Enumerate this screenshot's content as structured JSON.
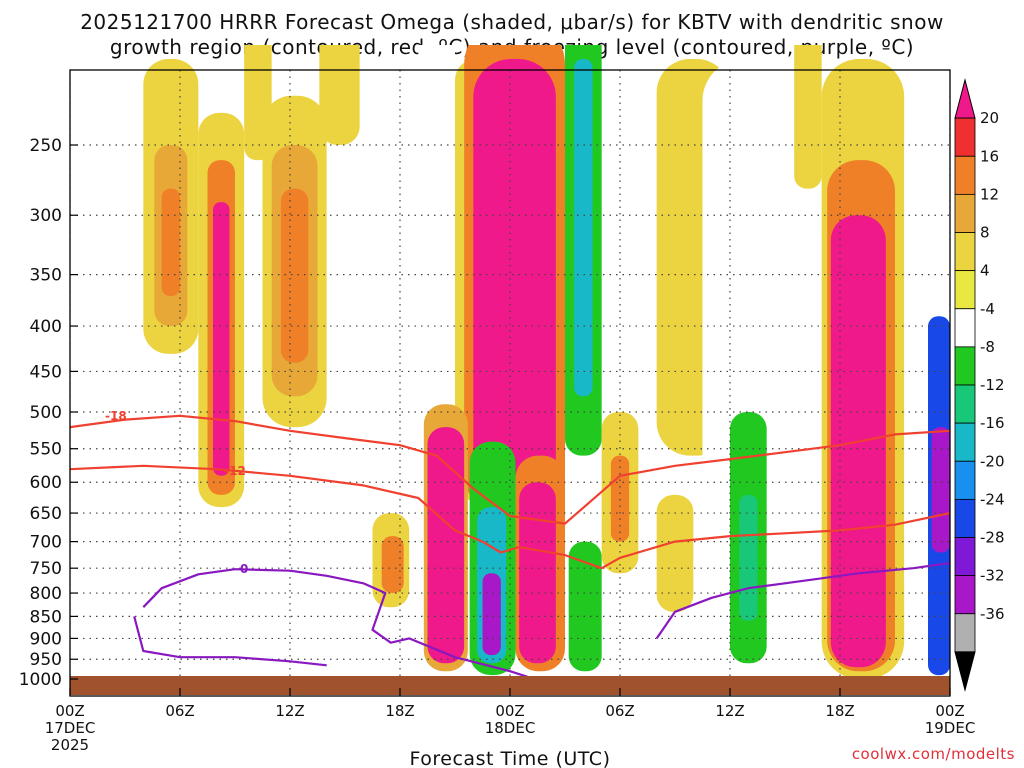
{
  "chart_data": {
    "type": "heatmap",
    "title_line1": "2025121700 HRRR Forecast Omega (shaded, μbar/s) for KBTV with dendritic snow",
    "title_line2": "growth region (contoured, red, ºC) and freezing level (contoured, purple, ºC)",
    "xlabel": "Forecast Time (UTC)",
    "ylabel": "",
    "credit": "coolwx.com/modelts",
    "x_range_hours": [
      0,
      48
    ],
    "x_ticks": [
      {
        "h": 0,
        "l1": "00Z",
        "l2": "17DEC",
        "l3": "2025"
      },
      {
        "h": 6,
        "l1": "06Z",
        "l2": "",
        "l3": ""
      },
      {
        "h": 12,
        "l1": "12Z",
        "l2": "",
        "l3": ""
      },
      {
        "h": 18,
        "l1": "18Z",
        "l2": "",
        "l3": ""
      },
      {
        "h": 24,
        "l1": "00Z",
        "l2": "18DEC",
        "l3": ""
      },
      {
        "h": 30,
        "l1": "06Z",
        "l2": "",
        "l3": ""
      },
      {
        "h": 36,
        "l1": "12Z",
        "l2": "",
        "l3": ""
      },
      {
        "h": 42,
        "l1": "18Z",
        "l2": "",
        "l3": ""
      },
      {
        "h": 48,
        "l1": "00Z",
        "l2": "19DEC",
        "l3": ""
      }
    ],
    "y_range_hpa": [
      1015,
      200
    ],
    "y_ticks": [
      250,
      300,
      350,
      400,
      450,
      500,
      550,
      600,
      650,
      700,
      750,
      800,
      850,
      900,
      950,
      1000
    ],
    "colorbar_levels": [
      20,
      16,
      12,
      8,
      4,
      -4,
      -8,
      -12,
      -16,
      -20,
      -24,
      -28,
      -32,
      -36
    ],
    "colorbar_colors": [
      "#f0198c",
      "#f03030",
      "#f08028",
      "#e8a838",
      "#ecd440",
      "#e8e840",
      "#ffffff",
      "#20c820",
      "#18c878",
      "#18b8c8",
      "#1890f0",
      "#1848e8",
      "#8018d8",
      "#a818c8",
      "#b0b0b0",
      "#000000"
    ],
    "omega_cells": [
      {
        "t0": 4,
        "t1": 7,
        "p0": 200,
        "p1": 430,
        "v": 5
      },
      {
        "t0": 4.6,
        "t1": 6.4,
        "p0": 250,
        "p1": 400,
        "v": 8
      },
      {
        "t0": 5,
        "t1": 6,
        "p0": 280,
        "p1": 370,
        "v": 12
      },
      {
        "t0": 7,
        "t1": 9.5,
        "p0": 230,
        "p1": 640,
        "v": 5
      },
      {
        "t0": 7.5,
        "t1": 9,
        "p0": 260,
        "p1": 620,
        "v": 12
      },
      {
        "t0": 7.8,
        "t1": 8.7,
        "p0": 290,
        "p1": 590,
        "v": 20
      },
      {
        "t0": 9.5,
        "t1": 11,
        "p0": 180,
        "p1": 260,
        "v": 5
      },
      {
        "t0": 10.5,
        "t1": 14,
        "p0": 220,
        "p1": 520,
        "v": 5
      },
      {
        "t0": 11,
        "t1": 13.5,
        "p0": 250,
        "p1": 480,
        "v": 8
      },
      {
        "t0": 11.5,
        "t1": 13,
        "p0": 280,
        "p1": 440,
        "v": 12
      },
      {
        "t0": 13.6,
        "t1": 15.8,
        "p0": 180,
        "p1": 250,
        "v": 5
      },
      {
        "t0": 16,
        "t1": 18,
        "p0": 360,
        "p1": 560,
        "v": -6
      },
      {
        "t0": 16.5,
        "t1": 18.5,
        "p0": 650,
        "p1": 830,
        "v": 5
      },
      {
        "t0": 17,
        "t1": 18.2,
        "p0": 690,
        "p1": 800,
        "v": 12
      },
      {
        "t0": 19,
        "t1": 21,
        "p0": 180,
        "p1": 1000,
        "v": -8
      },
      {
        "t0": 21,
        "t1": 23.5,
        "p0": 200,
        "p1": 630,
        "v": 4
      },
      {
        "t0": 21.5,
        "t1": 27,
        "p0": 180,
        "p1": 660,
        "v": 12
      },
      {
        "t0": 22,
        "t1": 26.5,
        "p0": 200,
        "p1": 640,
        "v": 20
      },
      {
        "t0": 19.3,
        "t1": 21.7,
        "p0": 490,
        "p1": 980,
        "v": 8
      },
      {
        "t0": 19.5,
        "t1": 21.5,
        "p0": 520,
        "p1": 960,
        "v": 20
      },
      {
        "t0": 21.8,
        "t1": 24.3,
        "p0": 540,
        "p1": 990,
        "v": -12
      },
      {
        "t0": 22.2,
        "t1": 23.8,
        "p0": 640,
        "p1": 960,
        "v": -20
      },
      {
        "t0": 22.5,
        "t1": 23.5,
        "p0": 760,
        "p1": 940,
        "v": -36
      },
      {
        "t0": 24.3,
        "t1": 27,
        "p0": 560,
        "p1": 980,
        "v": 12
      },
      {
        "t0": 24.5,
        "t1": 26.5,
        "p0": 600,
        "p1": 960,
        "v": 20
      },
      {
        "t0": 27,
        "t1": 29,
        "p0": 180,
        "p1": 560,
        "v": -10
      },
      {
        "t0": 27.5,
        "t1": 28.5,
        "p0": 200,
        "p1": 480,
        "v": -20
      },
      {
        "t0": 27.2,
        "t1": 29,
        "p0": 700,
        "p1": 980,
        "v": -10
      },
      {
        "t0": 29,
        "t1": 31,
        "p0": 500,
        "p1": 760,
        "v": 5
      },
      {
        "t0": 29.5,
        "t1": 30.5,
        "p0": 560,
        "p1": 700,
        "v": 12
      },
      {
        "t0": 32,
        "t1": 36,
        "p0": 200,
        "p1": 560,
        "v": 5
      },
      {
        "t0": 32,
        "t1": 34,
        "p0": 620,
        "p1": 840,
        "v": 5
      },
      {
        "t0": 34.5,
        "t1": 39.5,
        "p0": 200,
        "p1": 990,
        "v": -8
      },
      {
        "t0": 36,
        "t1": 38,
        "p0": 500,
        "p1": 960,
        "v": -12
      },
      {
        "t0": 36.5,
        "t1": 37.5,
        "p0": 620,
        "p1": 860,
        "v": -16
      },
      {
        "t0": 39.5,
        "t1": 41,
        "p0": 180,
        "p1": 280,
        "v": 5
      },
      {
        "t0": 41,
        "t1": 45.5,
        "p0": 200,
        "p1": 1000,
        "v": 5
      },
      {
        "t0": 41.3,
        "t1": 45,
        "p0": 260,
        "p1": 980,
        "v": 12
      },
      {
        "t0": 41.5,
        "t1": 44.5,
        "p0": 300,
        "p1": 970,
        "v": 20
      },
      {
        "t0": 45.5,
        "t1": 47,
        "p0": 240,
        "p1": 800,
        "v": -8
      },
      {
        "t0": 46.8,
        "t1": 48,
        "p0": 390,
        "p1": 990,
        "v": -28
      },
      {
        "t0": 47,
        "t1": 48,
        "p0": 520,
        "p1": 720,
        "v": -34
      }
    ],
    "series": [
      {
        "name": "-18 isotherm",
        "color": "#f04030",
        "label": "-18",
        "label_at": [
          2.5,
          505
        ],
        "points": [
          [
            0,
            520
          ],
          [
            3,
            510
          ],
          [
            6,
            505
          ],
          [
            9,
            512
          ],
          [
            12,
            525
          ],
          [
            15,
            535
          ],
          [
            18,
            545
          ],
          [
            20,
            560
          ],
          [
            22,
            610
          ],
          [
            24,
            655
          ],
          [
            27,
            668
          ],
          [
            30,
            590
          ],
          [
            33,
            575
          ],
          [
            36,
            565
          ],
          [
            39,
            555
          ],
          [
            42,
            545
          ],
          [
            45,
            530
          ],
          [
            48,
            525
          ]
        ]
      },
      {
        "name": "-12 isotherm",
        "color": "#f04030",
        "label": "-12",
        "label_at": [
          9,
          583
        ],
        "points": [
          [
            0,
            580
          ],
          [
            4,
            575
          ],
          [
            8,
            580
          ],
          [
            12,
            590
          ],
          [
            16,
            605
          ],
          [
            19,
            625
          ],
          [
            21,
            680
          ],
          [
            22.5,
            700
          ],
          [
            23.5,
            720
          ],
          [
            24.5,
            710
          ],
          [
            27,
            725
          ],
          [
            29,
            750
          ],
          [
            30,
            730
          ],
          [
            33,
            700
          ],
          [
            36,
            690
          ],
          [
            39,
            685
          ],
          [
            42,
            680
          ],
          [
            45,
            670
          ],
          [
            48,
            650
          ]
        ]
      },
      {
        "name": "0 freezing level",
        "color": "#8a18c0",
        "label": "0",
        "label_at": [
          9.5,
          752
        ],
        "points": [
          [
            4,
            830
          ],
          [
            5,
            790
          ],
          [
            7,
            762
          ],
          [
            9,
            752
          ],
          [
            12,
            755
          ],
          [
            14,
            765
          ],
          [
            16,
            780
          ],
          [
            17.2,
            800
          ],
          [
            16.5,
            880
          ],
          [
            17.5,
            910
          ],
          [
            18.5,
            900
          ],
          [
            21,
            945
          ],
          [
            24,
            980
          ],
          [
            25,
            995
          ]
        ]
      },
      {
        "name": "0 freezing level east",
        "color": "#8a18c0",
        "label": "",
        "label_at": null,
        "points": [
          [
            32,
            900
          ],
          [
            33,
            840
          ],
          [
            35,
            810
          ],
          [
            37,
            790
          ],
          [
            39,
            780
          ],
          [
            41,
            770
          ],
          [
            43,
            760
          ],
          [
            46,
            750
          ],
          [
            48,
            740
          ]
        ]
      },
      {
        "name": "0 freezing level west-low",
        "color": "#8a18c0",
        "label": "",
        "label_at": null,
        "points": [
          [
            3.5,
            850
          ],
          [
            4,
            930
          ],
          [
            6,
            945
          ],
          [
            9,
            945
          ],
          [
            12,
            955
          ],
          [
            14,
            965
          ]
        ]
      }
    ],
    "ground_color": "#a0522d"
  }
}
